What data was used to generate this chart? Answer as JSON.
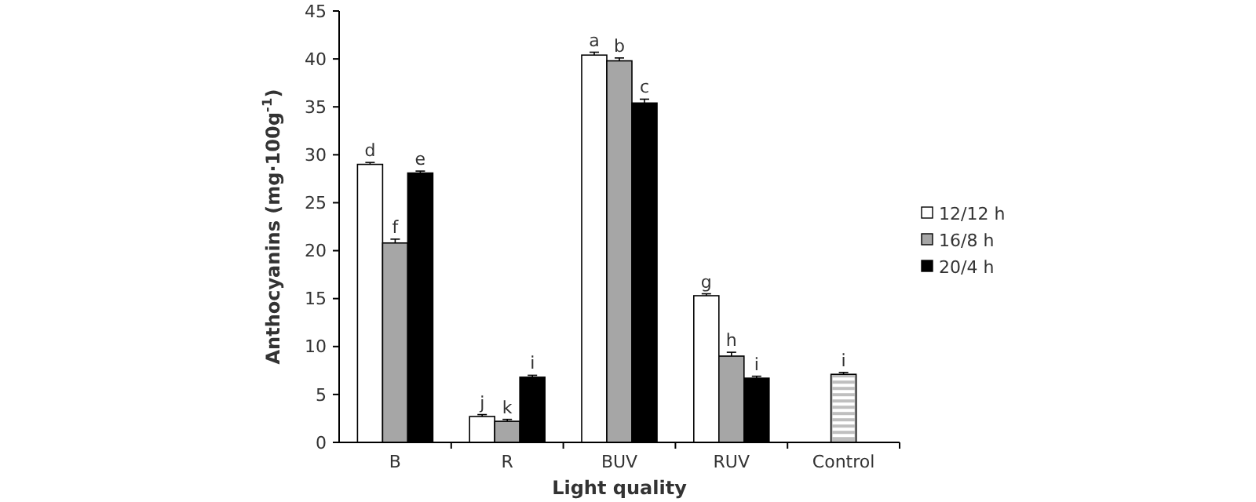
{
  "chart_data": {
    "type": "bar",
    "xlabel": "Light quality",
    "ylabel": "Anthocyanins (mg·100g$^{-1}$)",
    "categories": [
      "B",
      "R",
      "BUV",
      "RUV",
      "Control"
    ],
    "series": [
      {
        "name": "12/12 h",
        "color": "#ffffff",
        "values": [
          29.0,
          2.7,
          40.4,
          15.3,
          null
        ],
        "errors": [
          0.2,
          0.2,
          0.3,
          0.2,
          null
        ],
        "value_labels": [
          "d",
          "j",
          "a",
          "g",
          null
        ]
      },
      {
        "name": "16/8 h",
        "color": "#a6a6a6",
        "values": [
          20.8,
          2.2,
          39.8,
          9.0,
          null
        ],
        "errors": [
          0.4,
          0.2,
          0.3,
          0.4,
          null
        ],
        "value_labels": [
          "f",
          "k",
          "b",
          "h",
          null
        ]
      },
      {
        "name": "20/4 h",
        "color": "#000000",
        "values": [
          28.1,
          6.8,
          35.4,
          6.7,
          null
        ],
        "errors": [
          0.2,
          0.2,
          0.4,
          0.2,
          null
        ],
        "value_labels": [
          "e",
          "i",
          "c",
          "i",
          null
        ]
      },
      {
        "color": "#bfbfbf",
        "values": [
          null,
          null,
          null,
          null,
          7.1
        ],
        "errors": [
          null,
          null,
          null,
          null,
          0.2
        ],
        "value_labels": [
          null,
          null,
          null,
          null,
          "i"
        ]
      }
    ],
    "ylim": [
      0,
      45
    ],
    "yticks": [
      0,
      5,
      10,
      15,
      20,
      25,
      30,
      35,
      40,
      45
    ],
    "legend": "right",
    "grid": false
  }
}
